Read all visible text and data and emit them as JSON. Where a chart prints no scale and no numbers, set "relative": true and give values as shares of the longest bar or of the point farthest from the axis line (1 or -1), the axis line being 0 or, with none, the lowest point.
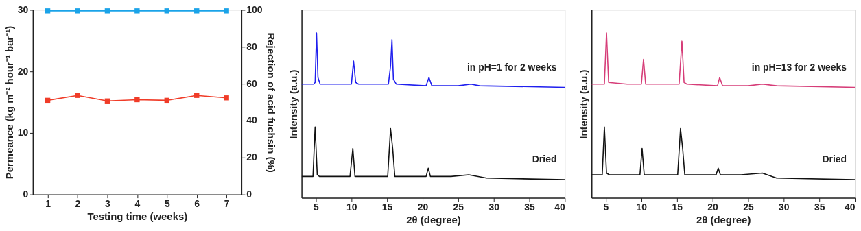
{
  "chart_data": [
    {
      "type": "line",
      "xlabel": "Testing time (weeks)",
      "ylabel": "Permeance (kg m⁻² hour⁻¹ bar⁻¹)",
      "y2label": "Rejection of acid fuchsin (%)",
      "x": [
        1,
        2,
        3,
        4,
        5,
        6,
        7
      ],
      "xlim": [
        0.5,
        7.5
      ],
      "xticks": [
        1,
        2,
        3,
        4,
        5,
        6,
        7
      ],
      "ylim": [
        0,
        30
      ],
      "yticks": [
        0,
        10,
        20,
        30
      ],
      "y2lim": [
        0,
        100
      ],
      "y2ticks": [
        0,
        20,
        40,
        60,
        80,
        100
      ],
      "marker": "square",
      "line_style": "solid",
      "grid": false,
      "series": [
        {
          "color": "#f03c28",
          "values": [
            15.3,
            16.1,
            15.2,
            15.4,
            15.3,
            16.1,
            15.7
          ],
          "errors": [
            null,
            null,
            null,
            0.4,
            null,
            null,
            null
          ]
        },
        {
          "color": "#1aa3e8",
          "axis": "y2",
          "values": [
            99.5,
            99.5,
            99.5,
            99.5,
            99.5,
            99.5,
            99.5
          ]
        }
      ]
    },
    {
      "type": "line",
      "relative": true,
      "xlabel": "2θ (degree)",
      "ylabel": "Intensity (a.u.)",
      "tick_labels": "x",
      "xlim": [
        3,
        40
      ],
      "xticks": [
        5,
        10,
        15,
        20,
        25,
        30,
        35,
        40
      ],
      "marker": "none",
      "line_style": "solid",
      "grid": false,
      "series": [
        {
          "name": "in pH=1 for 2 weeks",
          "color": "#1f1fee",
          "x": [
            3,
            4.7,
            4.9,
            5.1,
            5.3,
            5.6,
            8,
            10.0,
            10.3,
            10.6,
            11,
            15.2,
            15.5,
            15.7,
            15.9,
            16.3,
            20.5,
            20.9,
            21.3,
            25,
            26.8,
            28,
            40
          ],
          "values": [
            0.69,
            0.69,
            0.7,
            1.0,
            0.73,
            0.69,
            0.69,
            0.69,
            0.83,
            0.7,
            0.69,
            0.69,
            0.8,
            0.96,
            0.72,
            0.69,
            0.68,
            0.73,
            0.68,
            0.68,
            0.69,
            0.68,
            0.67
          ]
        },
        {
          "name": "Dried",
          "color": "#111111",
          "x": [
            3,
            4.6,
            4.9,
            5.2,
            5.5,
            9.8,
            10.2,
            10.5,
            15.1,
            15.5,
            15.8,
            16.1,
            20.5,
            20.8,
            21.1,
            24,
            26.5,
            29,
            40
          ],
          "values": [
            0.13,
            0.13,
            0.43,
            0.14,
            0.13,
            0.13,
            0.3,
            0.13,
            0.13,
            0.42,
            0.3,
            0.13,
            0.13,
            0.18,
            0.13,
            0.13,
            0.14,
            0.12,
            0.11
          ]
        }
      ]
    },
    {
      "type": "line",
      "relative": true,
      "xlabel": "2θ (degree)",
      "ylabel": "Intensity (a.u.)",
      "tick_labels": "x",
      "xlim": [
        3,
        40
      ],
      "xticks": [
        5,
        10,
        15,
        20,
        25,
        30,
        35,
        40
      ],
      "marker": "none",
      "line_style": "solid",
      "grid": false,
      "series": [
        {
          "name": "in pH=13 for 2 weeks",
          "color": "#d63d78",
          "x": [
            3,
            4.8,
            5.1,
            5.4,
            8,
            10.0,
            10.3,
            10.6,
            15.3,
            15.7,
            16.0,
            16.4,
            20.7,
            21.0,
            21.4,
            25,
            27,
            29,
            40
          ],
          "values": [
            0.69,
            0.69,
            1.0,
            0.7,
            0.69,
            0.69,
            0.84,
            0.69,
            0.69,
            0.95,
            0.7,
            0.69,
            0.68,
            0.73,
            0.68,
            0.68,
            0.69,
            0.68,
            0.67
          ]
        },
        {
          "name": "Dried",
          "color": "#111111",
          "x": [
            3,
            4.5,
            4.8,
            5.1,
            5.5,
            9.8,
            10.1,
            10.4,
            15.1,
            15.5,
            15.8,
            16.1,
            20.5,
            20.8,
            21.1,
            24,
            27,
            29,
            40
          ],
          "values": [
            0.14,
            0.14,
            0.43,
            0.15,
            0.14,
            0.14,
            0.3,
            0.14,
            0.14,
            0.42,
            0.3,
            0.14,
            0.14,
            0.18,
            0.14,
            0.14,
            0.15,
            0.12,
            0.11
          ]
        }
      ]
    }
  ]
}
